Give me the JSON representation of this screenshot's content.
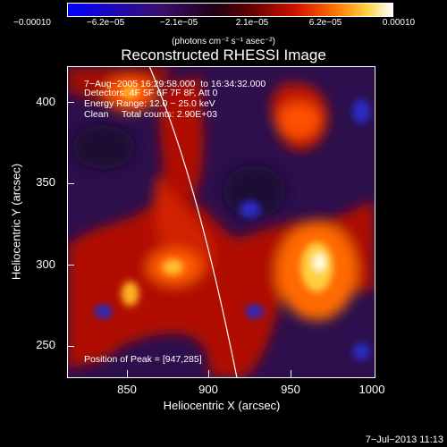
{
  "colorbar": {
    "ticks": [
      "−0.00010",
      "−6.2e−05",
      "−2.1e−05",
      "2.1e−05",
      "6.2e−05",
      "0.00010"
    ],
    "unit_label": "(photons cm⁻² s⁻¹ asec⁻²)"
  },
  "title": "Reconstructed RHESSI Image",
  "info_lines": [
    "7−Aug−2005 16:29:58.000  to 16:34:32.000",
    "Detectors: 4F 5F 6F 7F 8F, Att 0",
    "Energy Range: 12.0 − 25.0 keV",
    "Clean     Total counts: 2.90E+03"
  ],
  "peak_text": "Position of Peak = [947,285]",
  "axes": {
    "xlabel": "Heliocentric X (arcsec)",
    "ylabel": "Heliocentric Y (arcsec)",
    "xticks": [
      "850",
      "900",
      "950",
      "1000"
    ],
    "yticks": [
      "400",
      "350",
      "300",
      "250"
    ]
  },
  "footer_date": "7−Jul−2013 11:13"
}
